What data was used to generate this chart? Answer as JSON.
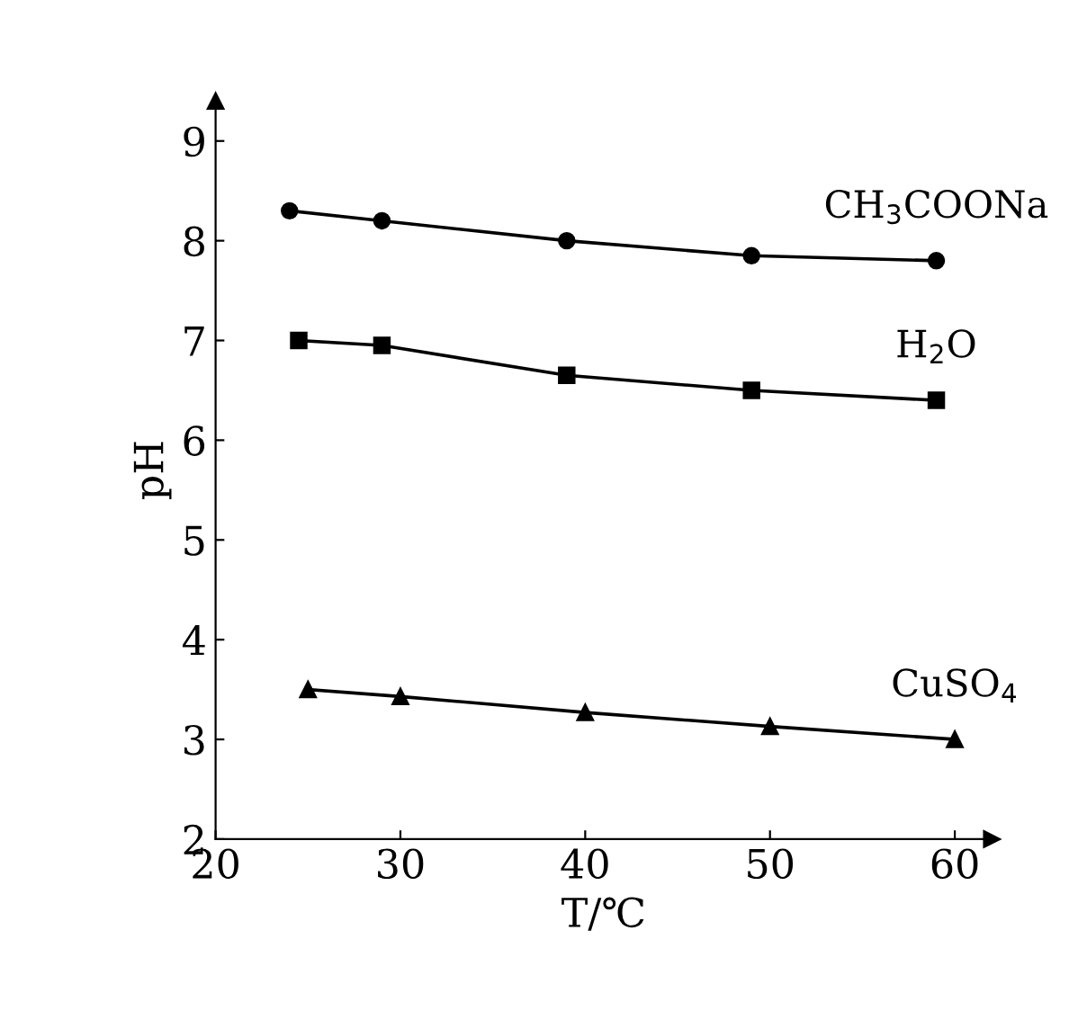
{
  "chart_data": {
    "type": "line",
    "xlabel": "T/℃",
    "ylabel": "pH",
    "xlim": [
      20,
      62
    ],
    "xticks": [
      20,
      30,
      40,
      50,
      60
    ],
    "ylim": [
      2,
      9.4
    ],
    "yticks": [
      2,
      3,
      4,
      5,
      6,
      7,
      8,
      9
    ],
    "grid": false,
    "legend": false,
    "series": [
      {
        "name": "CH$_{3}$COONa",
        "color": "#000000",
        "marker": "circle",
        "x": [
          24,
          29,
          39,
          49,
          59
        ],
        "values": [
          8.3,
          8.2,
          8.0,
          7.85,
          7.8
        ]
      },
      {
        "name": "H$_{2}$O",
        "color": "#000000",
        "marker": "square",
        "x": [
          24.5,
          29,
          39,
          49,
          59
        ],
        "values": [
          7.0,
          6.95,
          6.65,
          6.5,
          6.4
        ]
      },
      {
        "name": "CuSO$_{4}$",
        "color": "#000000",
        "marker": "triangle",
        "x": [
          25,
          30,
          40,
          50,
          60
        ],
        "values": [
          3.5,
          3.43,
          3.27,
          3.13,
          3.0
        ]
      }
    ]
  }
}
